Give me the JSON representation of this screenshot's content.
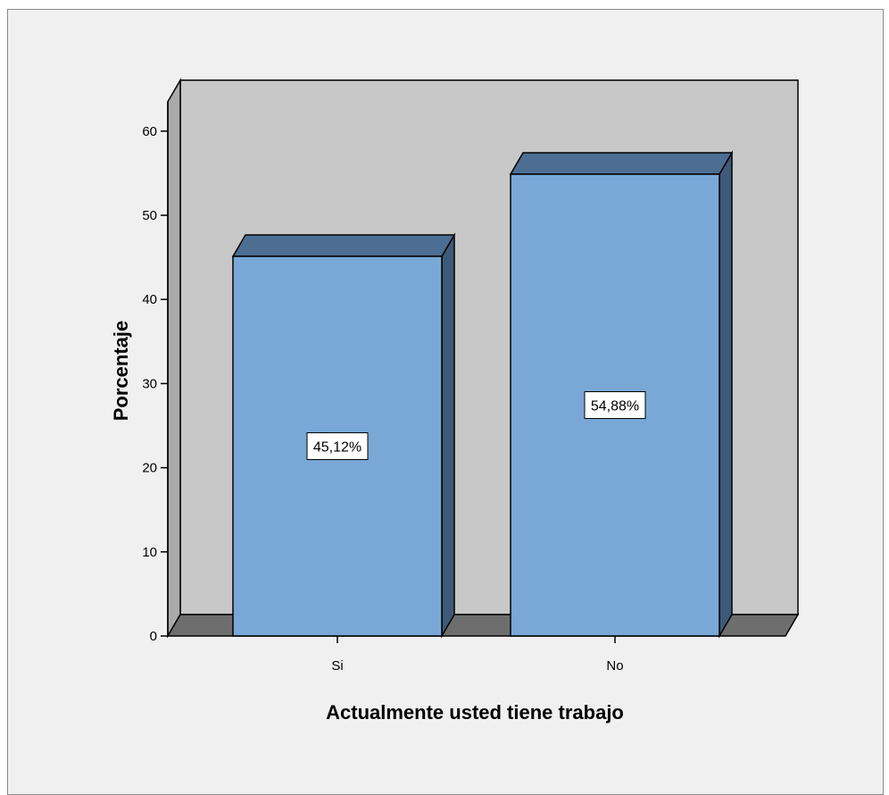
{
  "chart_data": {
    "type": "bar",
    "style": "3d",
    "title": "",
    "xlabel": "Actualmente usted tiene trabajo",
    "ylabel": "Porcentaje",
    "categories": [
      "Si",
      "No"
    ],
    "values": [
      45.12,
      54.88
    ],
    "data_labels": [
      "45,12%",
      "54,88%"
    ],
    "ylim": [
      0,
      60
    ],
    "yticks": [
      "0",
      "10",
      "20",
      "30",
      "40",
      "50",
      "60"
    ],
    "grid": false,
    "legend": "none",
    "colors": {
      "bar_front": "#79a8d6",
      "bar_side": "#3e5a78",
      "plot_wall": "#c8c8c8",
      "floor": "#6e6e6e",
      "background": "#f0f0f0"
    }
  }
}
